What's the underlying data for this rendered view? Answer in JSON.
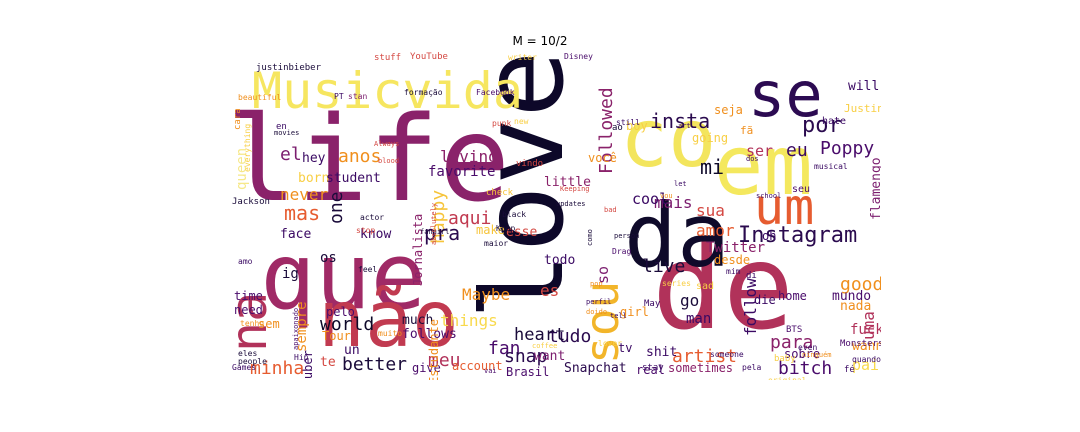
{
  "title": "M = 10/2",
  "words": [
    {
      "t": "life",
      "c": "#8a226a"
    },
    {
      "t": "love",
      "c": "#0d0829"
    },
    {
      "t": "de",
      "c": "#b1325a"
    },
    {
      "t": "que",
      "c": "#a02a66"
    },
    {
      "t": "não",
      "c": "#c13a50"
    },
    {
      "t": "co",
      "c": "#f3e55d"
    },
    {
      "t": "em",
      "c": "#f4e85e"
    },
    {
      "t": "da",
      "c": "#0f0a2a"
    },
    {
      "t": "se",
      "c": "#2c0b52"
    },
    {
      "t": "Musicvida",
      "c": "#f6e660"
    },
    {
      "t": "um",
      "c": "#e65c30"
    },
    {
      "t": "na",
      "c": "#b1325a"
    },
    {
      "t": "sou",
      "c": "#f2b52a"
    },
    {
      "t": "Instagram",
      "c": "#2a0a4e"
    },
    {
      "t": "por",
      "c": "#2a0a4e"
    },
    {
      "t": "eu",
      "c": "#3a0963"
    },
    {
      "t": "insta",
      "c": "#2a0a4e"
    },
    {
      "t": "Poppy",
      "c": "#4a0c6b"
    },
    {
      "t": "mi",
      "c": "#0d0829"
    },
    {
      "t": "ser",
      "c": "#b1325a"
    },
    {
      "t": "el",
      "c": "#7b1d6e"
    },
    {
      "t": "mas",
      "c": "#e65c30"
    },
    {
      "t": "anos",
      "c": "#f08f1d"
    },
    {
      "t": "living",
      "c": "#8a226a"
    },
    {
      "t": "favorite",
      "c": "#4a0c6b"
    },
    {
      "t": "happy",
      "c": "#f6c43a"
    },
    {
      "t": "aqui",
      "c": "#c13a50"
    },
    {
      "t": "pra",
      "c": "#2a0a4e"
    },
    {
      "t": "one",
      "c": "#1a0b3a"
    },
    {
      "t": "never",
      "c": "#f08f1d"
    },
    {
      "t": "born",
      "c": "#f8cf45"
    },
    {
      "t": "Followed",
      "c": "#8a226a"
    },
    {
      "t": "mais",
      "c": "#7b1d6e"
    },
    {
      "t": "sua",
      "c": "#d44842"
    },
    {
      "t": "cool",
      "c": "#3a0963"
    },
    {
      "t": "amor",
      "c": "#e65c30"
    },
    {
      "t": "Twitter",
      "c": "#8a226a"
    },
    {
      "t": "live",
      "c": "#1a0b3a"
    },
    {
      "t": "so",
      "c": "#7b1d6e"
    },
    {
      "t": "es",
      "c": "#d44842"
    },
    {
      "t": "Maybe",
      "c": "#f08f1d"
    },
    {
      "t": "things",
      "c": "#f8d94c"
    },
    {
      "t": "world",
      "c": "#0d0829"
    },
    {
      "t": "tudo",
      "c": "#2a0a4e"
    },
    {
      "t": "fan",
      "c": "#4a0c6b"
    },
    {
      "t": "heart",
      "c": "#1a0b3a"
    },
    {
      "t": "snap",
      "c": "#2a0a4e"
    },
    {
      "t": "meu",
      "c": "#b1325a"
    },
    {
      "t": "minha",
      "c": "#e65c30"
    },
    {
      "t": "better",
      "c": "#1a0b3a"
    },
    {
      "t": "artist",
      "c": "#e65c30"
    },
    {
      "t": "bitch",
      "c": "#4a0c6b"
    },
    {
      "t": "follow",
      "c": "#3a0963"
    },
    {
      "t": "para",
      "c": "#8a226a"
    },
    {
      "t": "uma",
      "c": "#b1325a"
    },
    {
      "t": "good",
      "c": "#f08f1d"
    },
    {
      "t": "go",
      "c": "#1a0b3a"
    },
    {
      "t": "man",
      "c": "#3a0963"
    },
    {
      "t": "sempre",
      "c": "#f08f1d"
    },
    {
      "t": "queen",
      "c": "#f6e88a"
    },
    {
      "t": "Snapchat",
      "c": "#2a0a4e"
    },
    {
      "t": "account",
      "c": "#e65c30"
    },
    {
      "t": "Brasil",
      "c": "#4a0c6b"
    },
    {
      "t": "real",
      "c": "#4a0c6b"
    },
    {
      "t": "sometimes",
      "c": "#8a226a"
    },
    {
      "t": "pai",
      "c": "#f8d94c"
    },
    {
      "t": "fuck",
      "c": "#b1325a"
    },
    {
      "t": "wanna",
      "c": "#f08f1d"
    },
    {
      "t": "nada",
      "c": "#f08f1d"
    },
    {
      "t": "mundo",
      "c": "#4a0c6b"
    },
    {
      "t": "flamengo",
      "c": "#7b1d6e"
    },
    {
      "t": "will",
      "c": "#3a0963"
    },
    {
      "t": "seja",
      "c": "#f08f1d"
    },
    {
      "t": "boy",
      "c": "#f8cf45"
    },
    {
      "t": "você",
      "c": "#f08f1d"
    },
    {
      "t": "going",
      "c": "#f8cf45"
    },
    {
      "t": "hey",
      "c": "#3a0963"
    },
    {
      "t": "student",
      "c": "#3a0963"
    },
    {
      "t": "face",
      "c": "#3a0963"
    },
    {
      "t": "know",
      "c": "#3a0963"
    },
    {
      "t": "make",
      "c": "#f6c43a"
    },
    {
      "t": "esse",
      "c": "#d44842"
    },
    {
      "t": "todo",
      "c": "#3a0963"
    },
    {
      "t": "little",
      "c": "#8a226a"
    },
    {
      "t": "ig",
      "c": "#1a0b3a"
    },
    {
      "t": "os",
      "c": "#1a0b3a"
    },
    {
      "t": "time",
      "c": "#4a0c6b"
    },
    {
      "t": "need",
      "c": "#4a0c6b"
    },
    {
      "t": "sem",
      "c": "#f08f1d"
    },
    {
      "t": "Tour",
      "c": "#f08f1d"
    },
    {
      "t": "pelo",
      "c": "#4a0c6b"
    },
    {
      "t": "much",
      "c": "#1a0b3a"
    },
    {
      "t": "follows",
      "c": "#4a0c6b"
    },
    {
      "t": "want",
      "c": "#7b1d6e"
    },
    {
      "t": "shit",
      "c": "#3a0963"
    },
    {
      "t": "girl",
      "c": "#f08f1d"
    },
    {
      "t": "die",
      "c": "#3a0963"
    },
    {
      "t": "home",
      "c": "#4a0c6b"
    },
    {
      "t": "desde",
      "c": "#f08f1d"
    },
    {
      "t": "oh",
      "c": "#3a0963"
    },
    {
      "t": "sobre",
      "c": "#4a0c6b"
    },
    {
      "t": "give",
      "c": "#4a0c6b"
    },
    {
      "t": "youtuber",
      "c": "#3a0963"
    },
    {
      "t": "Jornalista",
      "c": "#8a226a"
    },
    {
      "t": "Estudante",
      "c": "#f08f1d"
    },
    {
      "t": "Jackson",
      "c": "#1a0b3a"
    },
    {
      "t": "Justin",
      "c": "#f8cf45"
    },
    {
      "t": "hate",
      "c": "#3a0963"
    },
    {
      "t": "seu",
      "c": "#4a0c6b"
    },
    {
      "t": "fã",
      "c": "#f08f1d"
    },
    {
      "t": "justinbieber",
      "c": "#1a0b3a"
    },
    {
      "t": "stuff",
      "c": "#d44842"
    },
    {
      "t": "YouTube",
      "c": "#d44842"
    },
    {
      "t": "writer",
      "c": "#f8cf45"
    },
    {
      "t": "Disney",
      "c": "#4a0c6b"
    },
    {
      "t": "formação",
      "c": "#1a0b3a"
    },
    {
      "t": "Facebook",
      "c": "#4a0c6b"
    },
    {
      "t": "stan",
      "c": "#7b1d6e"
    },
    {
      "t": "beautiful",
      "c": "#f08f1d"
    },
    {
      "t": "cara",
      "c": "#f08f1d"
    },
    {
      "t": "everything",
      "c": "#f8cf45"
    },
    {
      "t": "en",
      "c": "#3a0963"
    },
    {
      "t": "movies",
      "c": "#1a0b3a"
    },
    {
      "t": "Always",
      "c": "#d44842"
    },
    {
      "t": "blood",
      "c": "#d44842"
    },
    {
      "t": "punk",
      "c": "#d44842"
    },
    {
      "t": "new",
      "c": "#f8cf45"
    },
    {
      "t": "vindo",
      "c": "#d44842"
    },
    {
      "t": "check",
      "c": "#f6c43a"
    },
    {
      "t": "black",
      "c": "#1a0b3a"
    },
    {
      "t": "Kpop",
      "c": "#1a0b3a"
    },
    {
      "t": "maior",
      "c": "#1a0b3a"
    },
    {
      "t": "fangirl",
      "c": "#1a0b3a"
    },
    {
      "t": "stop",
      "c": "#d44842"
    },
    {
      "t": "actor",
      "c": "#1a0b3a"
    },
    {
      "t": "feel",
      "c": "#1a0b3a"
    },
    {
      "t": "amo",
      "c": "#3a0963"
    },
    {
      "t": "tenho",
      "c": "#f08f1d"
    },
    {
      "t": "eles",
      "c": "#1a0b3a"
    },
    {
      "t": "people",
      "c": "#1a0b3a"
    },
    {
      "t": "Games",
      "c": "#3a0963"
    },
    {
      "t": "un",
      "c": "#3a0963"
    },
    {
      "t": "muito",
      "c": "#f08f1d"
    },
    {
      "t": "apaixonado",
      "c": "#4a0c6b"
    },
    {
      "t": "te",
      "c": "#d44842"
    },
    {
      "t": "vai",
      "c": "#4a0c6b"
    },
    {
      "t": "Drag",
      "c": "#4a0c6b"
    },
    {
      "t": "tv",
      "c": "#3a0963"
    },
    {
      "t": "stay",
      "c": "#3a0963"
    },
    {
      "t": "lover",
      "c": "#f8cf45"
    },
    {
      "t": "series",
      "c": "#f8cf45"
    },
    {
      "t": "sad",
      "c": "#f8cf45"
    },
    {
      "t": "May",
      "c": "#3a0963"
    },
    {
      "t": "BTS",
      "c": "#4a0c6b"
    },
    {
      "t": "Monsters",
      "c": "#4a0c6b"
    },
    {
      "t": "quando",
      "c": "#3a0963"
    },
    {
      "t": "fé",
      "c": "#3a0963"
    },
    {
      "t": "even",
      "c": "#3a0963"
    },
    {
      "t": "someone",
      "c": "#3a0963"
    },
    {
      "t": "baby",
      "c": "#f8cf45"
    },
    {
      "t": "pela",
      "c": "#3a0963"
    },
    {
      "t": "original",
      "c": "#f8cf45"
    },
    {
      "t": "musical",
      "c": "#3a0963"
    },
    {
      "t": "school",
      "c": "#3a0963"
    },
    {
      "t": "dos",
      "c": "#3a0963"
    },
    {
      "t": "still",
      "c": "#3a0963"
    },
    {
      "t": "art",
      "c": "#3a0963"
    },
    {
      "t": "let",
      "c": "#3a0963"
    },
    {
      "t": "bad",
      "c": "#d44842"
    },
    {
      "t": "vou",
      "c": "#f08f1d"
    },
    {
      "t": "absolutely",
      "c": "#d44842"
    },
    {
      "t": "Keeping",
      "c": "#d44842"
    },
    {
      "t": "PT",
      "c": "#3a0963"
    },
    {
      "t": "updates",
      "c": "#1a0b3a"
    },
    {
      "t": "como",
      "c": "#1a0b3a"
    },
    {
      "t": "perfil",
      "c": "#3a0963"
    },
    {
      "t": "coffee",
      "c": "#f8cf45"
    },
    {
      "t": "person",
      "c": "#1a0b3a"
    },
    {
      "t": "tell",
      "c": "#3a0963"
    },
    {
      "t": "ninguém",
      "c": "#f08f1d"
    },
    {
      "t": "mim",
      "c": "#3a0963"
    },
    {
      "t": "di",
      "c": "#3a0963"
    },
    {
      "t": "Hip",
      "c": "#3a0963"
    },
    {
      "t": "ao",
      "c": "#1a0b3a"
    },
    {
      "t": "pop",
      "c": "#f08f1d"
    },
    {
      "t": "doido",
      "c": "#f08f1d"
    }
  ]
}
